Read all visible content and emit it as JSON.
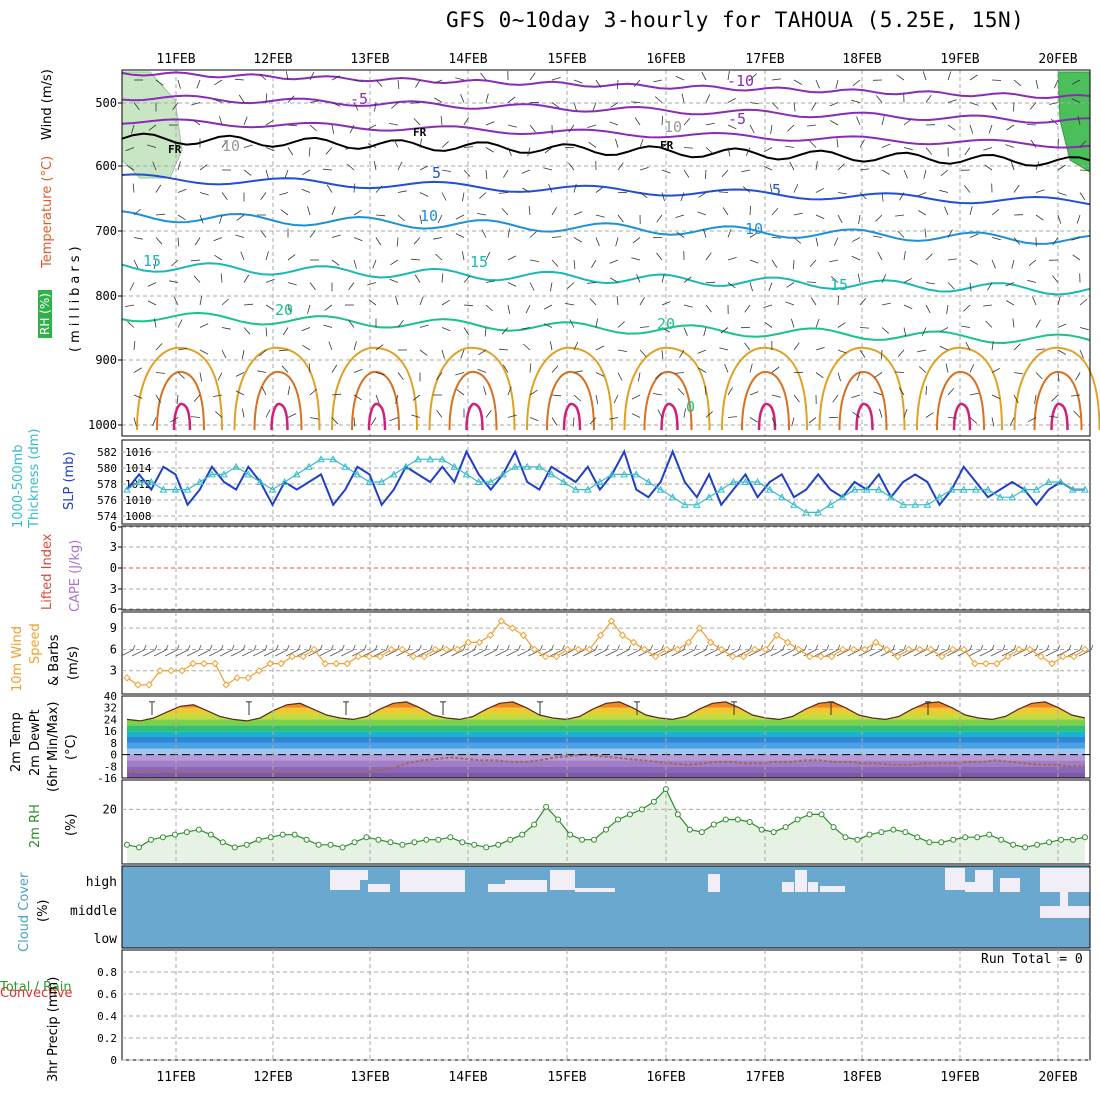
{
  "title": "GFS 0~10day 3-hourly for TAHOUA (5.25E, 15N)",
  "dates": [
    "11FEB",
    "12FEB",
    "13FEB",
    "14FEB",
    "15FEB",
    "16FEB",
    "17FEB",
    "18FEB",
    "19FEB",
    "20FEB"
  ],
  "colors": {
    "temp_neg": "#8a2bb8",
    "freezing": "#000000",
    "temp_5": "#1f4fd6",
    "temp_10": "#1e90d8",
    "temp_15": "#19b8b8",
    "temp_20": "#19c28c",
    "warm_orange": "#e0a020",
    "warm_dark": "#d87020",
    "hot_magenta": "#d0207a",
    "slp": "#1e3fc8",
    "thickness": "#36bcc8",
    "wind_speed": "#f0a030",
    "rh": "#2e8b2e",
    "rh_fill": "#e6f2e3",
    "cloud_bg": "#6aa8d0",
    "cloud_gap": "#f2eef8",
    "li_zero": "#e05050"
  },
  "panels": {
    "upper_air": {
      "labels": [
        "RH (%)",
        "Temperature (°C)",
        "Wind (m/s)"
      ],
      "axis_label": "(millibars)",
      "yticks": [
        "500",
        "600",
        "700",
        "800",
        "900",
        "1000"
      ],
      "contour_labels": [
        "-10",
        "-5",
        "-5",
        "FR",
        "FR",
        "FR",
        "5",
        "5",
        "10",
        "10",
        "15",
        "15",
        "15",
        "20",
        "20",
        "0",
        "10",
        "10"
      ]
    },
    "slp_thickness": {
      "labels": [
        "1000-500mb",
        "Thickness (dm)",
        "SLP (mb)"
      ],
      "left_ticks": [
        "582",
        "580",
        "578",
        "576",
        "574"
      ],
      "right_ticks": [
        "1016",
        "1014",
        "1012",
        "1010",
        "1008"
      ]
    },
    "stability": {
      "labels": [
        "Lifted Index",
        "CAPE (J/kg)"
      ],
      "yticks": [
        "6",
        "3",
        "0",
        "3",
        "6"
      ]
    },
    "wind10m": {
      "labels": [
        "10m Wind",
        "Speed",
        "& Barbs",
        "(m/s)"
      ],
      "yticks": [
        "9",
        "6",
        "3"
      ]
    },
    "temp2m": {
      "labels": [
        "2m Temp",
        "2m DewPt",
        "(6hr Min/Max)",
        "(°C)"
      ],
      "yticks": [
        "40",
        "32",
        "24",
        "16",
        "8",
        "0",
        "-8",
        "-16"
      ]
    },
    "rh2m": {
      "labels": [
        "2m RH",
        "(%)"
      ],
      "yticks": [
        "20"
      ]
    },
    "cloud": {
      "labels": [
        "Cloud Cover",
        "(%)"
      ],
      "levels": [
        "high",
        "middle",
        "low"
      ]
    },
    "precip": {
      "labels": [
        "Total / Rain",
        "Convective",
        "3hr Precip (mm)"
      ],
      "yticks": [
        "0.8",
        "0.6",
        "0.4",
        "0.2",
        "0"
      ],
      "run_total": "Run Total = 0"
    }
  },
  "chart_data": [
    {
      "type": "line",
      "title": "SLP (mb)",
      "ylim": [
        1007,
        1017
      ],
      "series": [
        {
          "name": "SLP (mb)",
          "values": [
            1011,
            1013,
            1011,
            1014,
            1013,
            1009,
            1011,
            1014,
            1012,
            1011,
            1014,
            1012,
            1009,
            1012,
            1011,
            1012,
            1013,
            1009,
            1011,
            1014,
            1013,
            1009,
            1011,
            1014,
            1013,
            1012,
            1014,
            1012,
            1016,
            1013,
            1011,
            1013,
            1016,
            1012,
            1011,
            1014,
            1013,
            1012,
            1014,
            1011,
            1013,
            1016,
            1011,
            1010,
            1012,
            1016,
            1012,
            1010,
            1013,
            1009,
            1011,
            1013,
            1010,
            1012,
            1013,
            1010,
            1011,
            1013,
            1011,
            1010,
            1012,
            1011,
            1013,
            1010,
            1012,
            1013,
            1012,
            1009,
            1011,
            1014,
            1012,
            1010,
            1011,
            1012,
            1011,
            1009,
            1011,
            1012,
            1011,
            1011
          ]
        }
      ],
      "x_range": [
        "11FEB",
        "20FEB"
      ]
    },
    {
      "type": "line",
      "title": "1000-500mb Thickness (dm)",
      "ylim": [
        573,
        583
      ],
      "series": [
        {
          "name": "1000-500mb Thickness (dm)",
          "values": [
            577,
            578,
            578,
            577,
            577,
            577,
            578,
            579,
            579,
            580,
            579,
            578,
            577,
            578,
            579,
            580,
            581,
            581,
            580,
            579,
            578,
            578,
            579,
            580,
            581,
            581,
            581,
            580,
            579,
            578,
            578,
            579,
            580,
            580,
            580,
            579,
            578,
            577,
            577,
            578,
            579,
            579,
            579,
            578,
            577,
            576,
            575,
            575,
            576,
            577,
            578,
            578,
            578,
            577,
            576,
            575,
            574,
            574,
            575,
            576,
            577,
            577,
            577,
            576,
            575,
            575,
            575,
            576,
            577,
            577,
            577,
            577,
            576,
            576,
            577,
            577,
            578,
            578,
            577,
            577
          ]
        }
      ],
      "x_range": [
        "11FEB",
        "20FEB"
      ]
    },
    {
      "type": "line",
      "title": "10m Wind Speed (m/s)",
      "ylim": [
        0,
        11
      ],
      "series": [
        {
          "name": "10m Wind Speed (m/s)",
          "values": [
            2,
            1,
            1,
            3,
            3,
            3,
            4,
            4,
            4,
            1,
            2,
            2,
            3,
            4,
            4,
            5,
            5,
            6,
            4,
            4,
            4,
            5,
            5,
            5,
            6,
            6,
            5,
            5,
            6,
            6,
            6,
            7,
            7,
            8,
            10,
            9,
            8,
            6,
            5,
            5,
            6,
            6,
            6,
            8,
            10,
            8,
            7,
            6,
            5,
            6,
            6,
            7,
            9,
            7,
            6,
            5,
            5,
            6,
            6,
            8,
            7,
            6,
            5,
            5,
            5,
            6,
            6,
            6,
            7,
            6,
            5,
            6,
            6,
            6,
            5,
            6,
            6,
            4,
            4,
            4,
            5,
            6,
            6,
            5,
            4,
            5,
            5,
            6
          ]
        }
      ],
      "x_range": [
        "11FEB",
        "20FEB"
      ]
    },
    {
      "type": "area",
      "title": "2m Temp (°C)",
      "ylim": [
        -16,
        40
      ],
      "series": [
        {
          "name": "2m Temp",
          "values": [
            24,
            23,
            25,
            29,
            33,
            34,
            30,
            26,
            24,
            23,
            25,
            30,
            34,
            35,
            31,
            27,
            25,
            24,
            26,
            31,
            35,
            36,
            32,
            27,
            25,
            24,
            26,
            31,
            35,
            36,
            32,
            27,
            25,
            24,
            26,
            31,
            35,
            36,
            32,
            27,
            25,
            24,
            26,
            31,
            35,
            36,
            32,
            27,
            25,
            24,
            26,
            31,
            35,
            36,
            32,
            27,
            25,
            24,
            26,
            31,
            35,
            36,
            32,
            27,
            25,
            24,
            26,
            31,
            35,
            36,
            32,
            27,
            25
          ]
        },
        {
          "name": "2m DewPt",
          "values": [
            -12,
            -11,
            -11,
            -12,
            -12,
            -12,
            -12,
            -12,
            -12,
            -12,
            -12,
            -12,
            -12,
            -12,
            -12,
            -12,
            -12,
            -11,
            -9,
            -6,
            -4,
            -3,
            -2,
            -3,
            -4,
            -4,
            -5,
            -5,
            -4,
            -2,
            -1,
            0,
            -1,
            -2,
            -3,
            -4,
            -5,
            -6,
            -7,
            -6,
            -5,
            -5,
            -6,
            -6,
            -5,
            -5,
            -4,
            -4,
            -5,
            -5,
            -6,
            -6,
            -7,
            -7,
            -6,
            -6,
            -6,
            -5,
            -5,
            -4,
            -5,
            -6,
            -7,
            -7,
            -8,
            -8
          ]
        }
      ],
      "x_range": [
        "11FEB",
        "20FEB"
      ]
    },
    {
      "type": "area",
      "title": "2m RH (%)",
      "ylim": [
        0,
        30
      ],
      "series": [
        {
          "name": "2m RH (%)",
          "values": [
            6,
            5,
            8,
            9,
            10,
            11,
            12,
            10,
            7,
            5,
            6,
            8,
            9,
            10,
            10,
            8,
            6,
            6,
            5,
            7,
            9,
            8,
            7,
            6,
            7,
            8,
            8,
            9,
            7,
            6,
            5,
            6,
            8,
            10,
            14,
            21,
            16,
            10,
            8,
            8,
            12,
            16,
            18,
            20,
            23,
            28,
            18,
            12,
            11,
            14,
            16,
            16,
            15,
            12,
            11,
            13,
            16,
            18,
            18,
            13,
            9,
            8,
            10,
            11,
            12,
            11,
            9,
            7,
            7,
            8,
            9,
            9,
            10,
            8,
            6,
            5,
            6,
            7,
            8,
            8,
            9
          ]
        }
      ],
      "x_range": [
        "11FEB",
        "20FEB"
      ]
    },
    {
      "type": "heatmap",
      "title": "Cloud Cover (%)",
      "categories": [
        "high",
        "middle",
        "low"
      ],
      "x_range": [
        "11FEB",
        "20FEB"
      ]
    },
    {
      "type": "bar",
      "title": "3hr Precip (mm)",
      "ylim": [
        0,
        1
      ],
      "values": [],
      "x_range": [
        "11FEB",
        "20FEB"
      ]
    }
  ]
}
